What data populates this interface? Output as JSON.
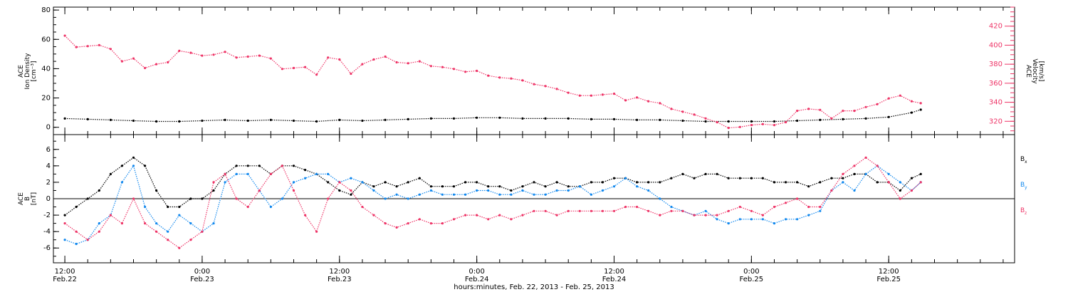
{
  "colors": {
    "density": "#000000",
    "velocity": "#ee3366",
    "bx": "#000000",
    "by": "#1188ee",
    "bz": "#ee3366",
    "axis": "#000000",
    "right_axis": "#ee3366"
  },
  "chart_data": [
    {
      "type": "scatter",
      "panel": "top",
      "ylabel_lines": [
        "ACE",
        "Ion Density",
        "[cm⁻³]"
      ],
      "ylim": [
        -5,
        82
      ],
      "yticks": [
        0,
        20,
        40,
        60,
        80
      ],
      "y2label_lines": [
        "ACE",
        "Velocity",
        "[km/s]"
      ],
      "y2lim": [
        306,
        440
      ],
      "y2ticks": [
        320,
        340,
        360,
        380,
        400,
        420
      ],
      "xlim": [
        -1,
        83
      ],
      "series": [
        {
          "key": "density",
          "axis": "left",
          "x": [
            0,
            2,
            4,
            6,
            8,
            10,
            12,
            14,
            16,
            18,
            20,
            22,
            24,
            26,
            28,
            30,
            32,
            34,
            36,
            38,
            40,
            42,
            44,
            46,
            48,
            50,
            52,
            54,
            56,
            58,
            60,
            62,
            64,
            66,
            68,
            70,
            72,
            74,
            74.8
          ],
          "y": [
            6,
            5.5,
            5,
            4.5,
            4,
            4,
            4.5,
            5,
            4.5,
            5,
            4.5,
            4,
            5,
            4.5,
            5,
            5.5,
            6,
            6,
            6.5,
            6.5,
            6,
            6,
            6,
            5.5,
            5.5,
            5,
            5,
            4.5,
            4,
            4,
            4,
            4,
            4.5,
            5,
            5.5,
            6,
            7,
            10,
            12
          ]
        },
        {
          "key": "velocity",
          "axis": "right",
          "x": [
            0,
            1,
            2,
            3,
            4,
            5,
            6,
            7,
            8,
            9,
            10,
            11,
            12,
            13,
            14,
            15,
            16,
            17,
            18,
            19,
            20,
            21,
            22,
            23,
            24,
            25,
            26,
            27,
            28,
            29,
            30,
            31,
            32,
            33,
            34,
            35,
            36,
            37,
            38,
            39,
            40,
            41,
            42,
            43,
            44,
            45,
            46,
            47,
            48,
            49,
            50,
            51,
            52,
            53,
            54,
            55,
            56,
            57,
            58,
            59,
            60,
            61,
            62,
            63,
            64,
            65,
            66,
            67,
            68,
            69,
            70,
            71,
            72,
            73,
            74,
            74.8
          ],
          "y": [
            410,
            398,
            399,
            400,
            396,
            383,
            386,
            376,
            380,
            382,
            394,
            392,
            389,
            390,
            393,
            387,
            388,
            389,
            386,
            375,
            376,
            377,
            369,
            387,
            385,
            370,
            380,
            385,
            388,
            382,
            381,
            383,
            378,
            377,
            375,
            372,
            373,
            368,
            366,
            365,
            363,
            359,
            357,
            354,
            350,
            347,
            347,
            348,
            349,
            342,
            345,
            341,
            339,
            333,
            330,
            327,
            323,
            319,
            313,
            314,
            316,
            317,
            316,
            319,
            331,
            333,
            332,
            323,
            331,
            331,
            335,
            338,
            344,
            347,
            341,
            339
          ]
        }
      ]
    },
    {
      "type": "scatter",
      "panel": "bottom",
      "ylabel_lines": [
        "ACE",
        "B",
        "[nT]"
      ],
      "ylim": [
        -7.8,
        7.8
      ],
      "yticks": [
        -6,
        -4,
        -2,
        0,
        2,
        4,
        6
      ],
      "xlim": [
        -1,
        83
      ],
      "legend_position": "right",
      "xticks": [
        {
          "x": 0,
          "label1": "12:00",
          "label2": "Feb.22"
        },
        {
          "x": 12,
          "label1": "0:00",
          "label2": "Feb.23"
        },
        {
          "x": 24,
          "label1": "12:00",
          "label2": "Feb.23"
        },
        {
          "x": 36,
          "label1": "0:00",
          "label2": "Feb.24"
        },
        {
          "x": 48,
          "label1": "12:00",
          "label2": "Feb.24"
        },
        {
          "x": 60,
          "label1": "0:00",
          "label2": "Feb.25"
        },
        {
          "x": 72,
          "label1": "12:00",
          "label2": "Feb.25"
        }
      ],
      "xlabel": "hours:minutes, Feb. 22, 2013 - Feb. 25, 2013",
      "series": [
        {
          "key": "bx",
          "legend_label": "B",
          "legend_sub": "x",
          "x": [
            0,
            1,
            2,
            3,
            4,
            5,
            6,
            7,
            8,
            9,
            10,
            11,
            12,
            13,
            14,
            15,
            16,
            17,
            18,
            19,
            20,
            21,
            22,
            23,
            24,
            25,
            26,
            27,
            28,
            29,
            30,
            31,
            32,
            33,
            34,
            35,
            36,
            37,
            38,
            39,
            40,
            41,
            42,
            43,
            44,
            45,
            46,
            47,
            48,
            49,
            50,
            51,
            52,
            53,
            54,
            55,
            56,
            57,
            58,
            59,
            60,
            61,
            62,
            63,
            64,
            65,
            66,
            67,
            68,
            69,
            70,
            71,
            72,
            73,
            74,
            74.8
          ],
          "y": [
            -2,
            -1,
            0,
            1,
            3,
            4,
            5,
            4,
            1,
            -1,
            -1,
            0,
            0,
            1,
            3,
            4,
            4,
            4,
            3,
            4,
            4,
            3.5,
            3,
            2,
            1,
            0.5,
            2,
            1.5,
            2,
            1.5,
            2,
            2.5,
            1.5,
            1.5,
            1.5,
            2,
            2,
            1.5,
            1.5,
            1,
            1.5,
            2,
            1.5,
            2,
            1.5,
            1.5,
            2,
            2,
            2.5,
            2.5,
            2,
            2,
            2,
            2.5,
            3,
            2.5,
            3,
            3,
            2.5,
            2.5,
            2.5,
            2.5,
            2,
            2,
            2,
            1.5,
            2,
            2.5,
            2.5,
            3,
            3,
            2,
            2,
            1,
            2.5,
            3
          ]
        },
        {
          "key": "by",
          "legend_label": "B",
          "legend_sub": "y",
          "x": [
            0,
            1,
            2,
            3,
            4,
            5,
            6,
            7,
            8,
            9,
            10,
            11,
            12,
            13,
            14,
            15,
            16,
            17,
            18,
            19,
            20,
            21,
            22,
            23,
            24,
            25,
            26,
            27,
            28,
            29,
            30,
            31,
            32,
            33,
            34,
            35,
            36,
            37,
            38,
            39,
            40,
            41,
            42,
            43,
            44,
            45,
            46,
            47,
            48,
            49,
            50,
            51,
            52,
            53,
            54,
            55,
            56,
            57,
            58,
            59,
            60,
            61,
            62,
            63,
            64,
            65,
            66,
            67,
            68,
            69,
            70,
            71,
            72,
            73,
            74,
            74.8
          ],
          "y": [
            -5,
            -5.5,
            -5,
            -3,
            -2,
            2,
            4,
            -1,
            -3,
            -4,
            -2,
            -3,
            -4,
            -3,
            2,
            3,
            3,
            1,
            -1,
            0,
            2,
            2.5,
            3,
            3,
            2,
            2.5,
            2,
            1,
            0,
            0.5,
            0,
            0.5,
            1,
            0.5,
            0.5,
            0.5,
            1,
            1,
            0.5,
            0.5,
            1,
            0.5,
            0.5,
            1,
            1,
            1.5,
            0.5,
            1,
            1.5,
            2.5,
            1.5,
            1,
            0,
            -1,
            -1.5,
            -2,
            -1.5,
            -2.5,
            -3,
            -2.5,
            -2.5,
            -2.5,
            -3,
            -2.5,
            -2.5,
            -2,
            -1.5,
            1,
            2,
            1,
            3,
            4,
            3,
            2,
            1,
            2
          ]
        },
        {
          "key": "bz",
          "legend_label": "B",
          "legend_sub": "z",
          "x": [
            0,
            1,
            2,
            3,
            4,
            5,
            6,
            7,
            8,
            9,
            10,
            11,
            12,
            13,
            14,
            15,
            16,
            17,
            18,
            19,
            20,
            21,
            22,
            23,
            24,
            25,
            26,
            27,
            28,
            29,
            30,
            31,
            32,
            33,
            34,
            35,
            36,
            37,
            38,
            39,
            40,
            41,
            42,
            43,
            44,
            45,
            46,
            47,
            48,
            49,
            50,
            51,
            52,
            53,
            54,
            55,
            56,
            57,
            58,
            59,
            60,
            61,
            62,
            63,
            64,
            65,
            66,
            67,
            68,
            69,
            70,
            71,
            72,
            73,
            74,
            74.8
          ],
          "y": [
            -3,
            -4,
            -5,
            -4,
            -2,
            -3,
            0,
            -3,
            -4,
            -5,
            -6,
            -5,
            -4,
            2,
            3,
            0,
            -1,
            1,
            3,
            4,
            1,
            -2,
            -4,
            0,
            2,
            1,
            -1,
            -2,
            -3,
            -3.5,
            -3,
            -2.5,
            -3,
            -3,
            -2.5,
            -2,
            -2,
            -2.5,
            -2,
            -2.5,
            -2,
            -1.5,
            -1.5,
            -2,
            -1.5,
            -1.5,
            -1.5,
            -1.5,
            -1.5,
            -1,
            -1,
            -1.5,
            -2,
            -1.5,
            -1.5,
            -2,
            -2,
            -2,
            -1.5,
            -1,
            -1.5,
            -2,
            -1,
            -0.5,
            0,
            -1,
            -1,
            1,
            3,
            4,
            5,
            4,
            2,
            0,
            1,
            2
          ]
        }
      ]
    }
  ]
}
